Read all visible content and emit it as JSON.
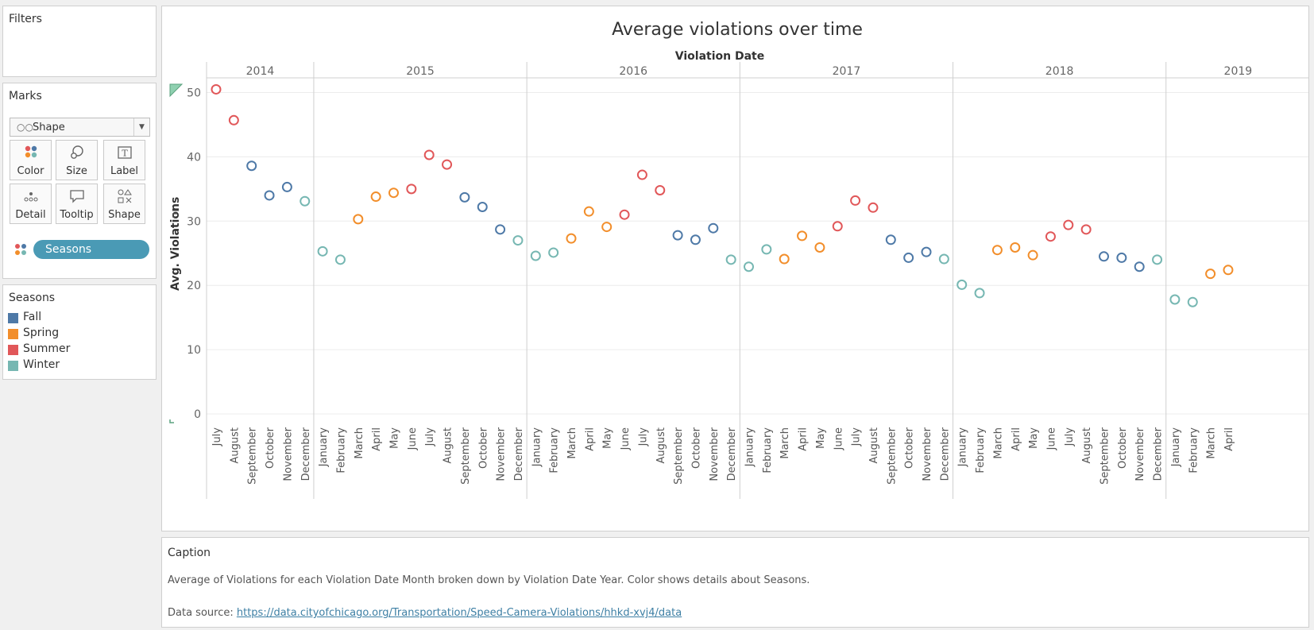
{
  "filters": {
    "title": "Filters"
  },
  "marks": {
    "title": "Marks",
    "mark_type": "Shape",
    "buttons": {
      "color": "Color",
      "size": "Size",
      "label": "Label",
      "detail": "Detail",
      "tooltip": "Tooltip",
      "shape": "Shape"
    },
    "pill": "Seasons"
  },
  "legend": {
    "title": "Seasons",
    "items": [
      {
        "label": "Fall",
        "color": "#4e79a7"
      },
      {
        "label": "Spring",
        "color": "#f28e2b"
      },
      {
        "label": "Summer",
        "color": "#e15759"
      },
      {
        "label": "Winter",
        "color": "#76b7b2"
      }
    ]
  },
  "caption": {
    "title": "Caption",
    "text": "Average of Violations for each Violation Date Month broken down by Violation Date Year.  Color shows details about Seasons.",
    "source_prefix": "Data source: ",
    "source_link": "https://data.cityofchicago.org/Transportation/Speed-Camera-Violations/hhkd-xvj4/data"
  },
  "chart_data": {
    "type": "scatter",
    "title": "Average violations over time",
    "xlabel": "Violation Date",
    "ylabel": "Avg. Violations",
    "ylim": [
      0,
      53
    ],
    "yticks": [
      0,
      10,
      20,
      30,
      40,
      50
    ],
    "grid": true,
    "season_colors": {
      "Fall": "#4e79a7",
      "Spring": "#f28e2b",
      "Summer": "#e15759",
      "Winter": "#76b7b2"
    },
    "years": [
      {
        "year": "2014",
        "points": [
          {
            "month": "July",
            "value": 50.5,
            "season": "Summer"
          },
          {
            "month": "August",
            "value": 45.7,
            "season": "Summer"
          },
          {
            "month": "September",
            "value": 38.6,
            "season": "Fall"
          },
          {
            "month": "October",
            "value": 34.0,
            "season": "Fall"
          },
          {
            "month": "November",
            "value": 35.3,
            "season": "Fall"
          },
          {
            "month": "December",
            "value": 33.1,
            "season": "Winter"
          }
        ]
      },
      {
        "year": "2015",
        "points": [
          {
            "month": "January",
            "value": 25.3,
            "season": "Winter"
          },
          {
            "month": "February",
            "value": 24.0,
            "season": "Winter"
          },
          {
            "month": "March",
            "value": 30.3,
            "season": "Spring"
          },
          {
            "month": "April",
            "value": 33.8,
            "season": "Spring"
          },
          {
            "month": "May",
            "value": 34.4,
            "season": "Spring"
          },
          {
            "month": "June",
            "value": 35.0,
            "season": "Summer"
          },
          {
            "month": "July",
            "value": 40.3,
            "season": "Summer"
          },
          {
            "month": "August",
            "value": 38.8,
            "season": "Summer"
          },
          {
            "month": "September",
            "value": 33.7,
            "season": "Fall"
          },
          {
            "month": "October",
            "value": 32.2,
            "season": "Fall"
          },
          {
            "month": "November",
            "value": 28.7,
            "season": "Fall"
          },
          {
            "month": "December",
            "value": 27.0,
            "season": "Winter"
          }
        ]
      },
      {
        "year": "2016",
        "points": [
          {
            "month": "January",
            "value": 24.6,
            "season": "Winter"
          },
          {
            "month": "February",
            "value": 25.1,
            "season": "Winter"
          },
          {
            "month": "March",
            "value": 27.3,
            "season": "Spring"
          },
          {
            "month": "April",
            "value": 31.5,
            "season": "Spring"
          },
          {
            "month": "May",
            "value": 29.1,
            "season": "Spring"
          },
          {
            "month": "June",
            "value": 31.0,
            "season": "Summer"
          },
          {
            "month": "July",
            "value": 37.2,
            "season": "Summer"
          },
          {
            "month": "August",
            "value": 34.8,
            "season": "Summer"
          },
          {
            "month": "September",
            "value": 27.8,
            "season": "Fall"
          },
          {
            "month": "October",
            "value": 27.1,
            "season": "Fall"
          },
          {
            "month": "November",
            "value": 28.9,
            "season": "Fall"
          },
          {
            "month": "December",
            "value": 24.0,
            "season": "Winter"
          }
        ]
      },
      {
        "year": "2017",
        "points": [
          {
            "month": "January",
            "value": 22.9,
            "season": "Winter"
          },
          {
            "month": "February",
            "value": 25.6,
            "season": "Winter"
          },
          {
            "month": "March",
            "value": 24.1,
            "season": "Spring"
          },
          {
            "month": "April",
            "value": 27.7,
            "season": "Spring"
          },
          {
            "month": "May",
            "value": 25.9,
            "season": "Spring"
          },
          {
            "month": "June",
            "value": 29.2,
            "season": "Summer"
          },
          {
            "month": "July",
            "value": 33.2,
            "season": "Summer"
          },
          {
            "month": "August",
            "value": 32.1,
            "season": "Summer"
          },
          {
            "month": "September",
            "value": 27.1,
            "season": "Fall"
          },
          {
            "month": "October",
            "value": 24.3,
            "season": "Fall"
          },
          {
            "month": "November",
            "value": 25.2,
            "season": "Fall"
          },
          {
            "month": "December",
            "value": 24.1,
            "season": "Winter"
          }
        ]
      },
      {
        "year": "2018",
        "points": [
          {
            "month": "January",
            "value": 20.1,
            "season": "Winter"
          },
          {
            "month": "February",
            "value": 18.8,
            "season": "Winter"
          },
          {
            "month": "March",
            "value": 25.5,
            "season": "Spring"
          },
          {
            "month": "April",
            "value": 25.9,
            "season": "Spring"
          },
          {
            "month": "May",
            "value": 24.7,
            "season": "Spring"
          },
          {
            "month": "June",
            "value": 27.6,
            "season": "Summer"
          },
          {
            "month": "July",
            "value": 29.4,
            "season": "Summer"
          },
          {
            "month": "August",
            "value": 28.7,
            "season": "Summer"
          },
          {
            "month": "September",
            "value": 24.5,
            "season": "Fall"
          },
          {
            "month": "October",
            "value": 24.3,
            "season": "Fall"
          },
          {
            "month": "November",
            "value": 22.9,
            "season": "Fall"
          },
          {
            "month": "December",
            "value": 24.0,
            "season": "Winter"
          }
        ]
      },
      {
        "year": "2019",
        "points": [
          {
            "month": "January",
            "value": 17.8,
            "season": "Winter"
          },
          {
            "month": "February",
            "value": 17.4,
            "season": "Winter"
          },
          {
            "month": "March",
            "value": 21.8,
            "season": "Spring"
          },
          {
            "month": "April",
            "value": 22.4,
            "season": "Spring"
          }
        ]
      }
    ]
  }
}
